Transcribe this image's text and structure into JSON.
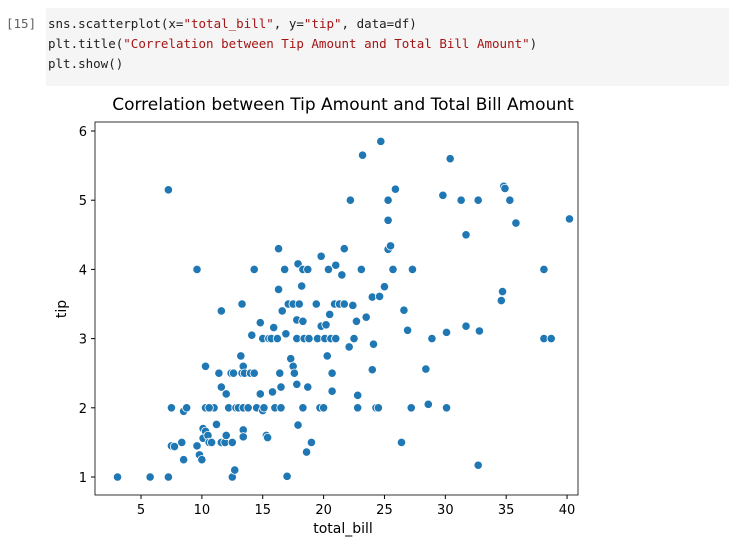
{
  "cell": {
    "prompt": "[15]",
    "code_lines": [
      [
        {
          "text": "sns.scatterplot(x=",
          "color": "#212121"
        },
        {
          "text": "\"total_bill\"",
          "color": "#a31515"
        },
        {
          "text": ", y=",
          "color": "#212121"
        },
        {
          "text": "\"tip\"",
          "color": "#a31515"
        },
        {
          "text": ", data=df)",
          "color": "#212121"
        }
      ],
      [
        {
          "text": "plt.title(",
          "color": "#212121"
        },
        {
          "text": "\"Correlation between Tip Amount and Total Bill Amount\"",
          "color": "#a31515"
        },
        {
          "text": ")",
          "color": "#212121"
        }
      ],
      [
        {
          "text": "plt.show()",
          "color": "#212121"
        }
      ]
    ]
  },
  "chart_data": {
    "type": "scatter",
    "title": "Correlation between Tip Amount and Total Bill Amount",
    "x_label": "total_bill",
    "y_label": "tip",
    "color": "#1f77b4",
    "xlim": [
      1.22,
      40.9
    ],
    "ylim": [
      0.74,
      6.13
    ],
    "xticks": [
      5,
      10,
      15,
      20,
      25,
      30,
      35,
      40
    ],
    "yticks": [
      1,
      2,
      3,
      4,
      5,
      6
    ],
    "x": [
      3.07,
      5.75,
      7.25,
      7.25,
      7.5,
      7.5,
      7.75,
      8.35,
      8.5,
      8.5,
      8.75,
      9.6,
      9.6,
      9.8,
      10.0,
      10.1,
      10.3,
      10.3,
      10.1,
      10.5,
      10.6,
      10.8,
      11.0,
      10.6,
      10.3,
      11.2,
      11.4,
      11.6,
      11.6,
      11.6,
      11.9,
      12.0,
      12.0,
      12.2,
      12.5,
      12.4,
      12.6,
      12.5,
      12.7,
      12.8,
      13.0,
      13.2,
      13.3,
      13.4,
      13.4,
      13.4,
      13.3,
      13.4,
      13.5,
      13.8,
      14.0,
      14.1,
      14.3,
      14.3,
      14.5,
      14.8,
      14.8,
      15.0,
      15.0,
      15.1,
      15.3,
      15.4,
      15.5,
      15.7,
      15.8,
      15.9,
      16.0,
      16.2,
      16.3,
      16.3,
      16.4,
      16.5,
      16.5,
      16.6,
      16.8,
      16.9,
      17.0,
      17.1,
      17.3,
      17.5,
      17.5,
      17.6,
      17.8,
      17.8,
      17.9,
      17.9,
      17.8,
      18.0,
      18.2,
      18.3,
      18.4,
      18.3,
      18.3,
      18.6,
      18.7,
      18.8,
      18.7,
      19.0,
      19.4,
      19.5,
      19.7,
      19.8,
      19.8,
      20.0,
      20.1,
      20.2,
      20.3,
      20.4,
      20.5,
      20.6,
      20.7,
      20.7,
      20.9,
      21.0,
      21.0,
      21.3,
      21.5,
      21.7,
      21.7,
      22.1,
      22.2,
      22.4,
      22.5,
      22.7,
      22.8,
      22.8,
      23.1,
      23.2,
      23.5,
      24.0,
      24.0,
      24.1,
      24.3,
      24.5,
      24.6,
      24.7,
      25.0,
      25.3,
      25.3,
      25.3,
      25.5,
      25.7,
      25.9,
      26.4,
      26.6,
      26.9,
      27.2,
      27.3,
      28.4,
      28.6,
      28.9,
      29.8,
      30.1,
      30.1,
      30.4,
      31.3,
      31.7,
      31.7,
      32.7,
      32.7,
      32.8,
      34.6,
      34.7,
      34.8,
      34.9,
      35.3,
      35.8,
      38.1,
      38.1,
      38.7,
      40.2
    ],
    "values": [
      1.0,
      1.0,
      1.0,
      5.15,
      2.0,
      1.45,
      1.44,
      1.5,
      1.25,
      1.95,
      2.0,
      1.45,
      4.0,
      1.32,
      1.25,
      1.7,
      1.66,
      2.0,
      1.56,
      1.6,
      1.5,
      1.5,
      2.0,
      2.0,
      2.6,
      1.76,
      2.5,
      1.5,
      2.3,
      3.4,
      1.5,
      1.6,
      2.2,
      2.0,
      1.5,
      2.5,
      2.5,
      1.0,
      1.1,
      2.0,
      2.0,
      2.75,
      2.5,
      2.0,
      1.68,
      1.58,
      3.5,
      2.6,
      2.5,
      2.0,
      2.5,
      3.05,
      2.5,
      4.0,
      2.0,
      3.23,
      2.2,
      1.96,
      3.0,
      2.0,
      1.6,
      1.57,
      3.0,
      3.0,
      2.23,
      3.16,
      2.0,
      3.0,
      3.71,
      4.3,
      2.5,
      2.0,
      2.3,
      3.4,
      4.0,
      3.07,
      1.01,
      3.5,
      2.71,
      3.5,
      2.6,
      2.5,
      3.27,
      2.34,
      4.08,
      1.75,
      3.0,
      3.5,
      3.76,
      4.0,
      3.0,
      2.0,
      3.25,
      1.36,
      4.0,
      3.0,
      2.3,
      1.5,
      3.5,
      3.0,
      2.0,
      3.18,
      4.19,
      2.0,
      3.0,
      3.2,
      2.75,
      4.0,
      3.35,
      3.0,
      2.5,
      2.24,
      3.5,
      4.06,
      3.0,
      3.5,
      3.92,
      4.3,
      3.5,
      2.88,
      5.0,
      3.48,
      3.0,
      3.25,
      2.0,
      2.18,
      4.0,
      5.65,
      3.31,
      2.55,
      3.6,
      2.92,
      2.0,
      2.0,
      3.61,
      5.85,
      3.75,
      5.0,
      4.29,
      4.71,
      4.34,
      4.0,
      5.16,
      1.5,
      3.41,
      3.12,
      2.0,
      4.0,
      2.56,
      2.05,
      3.0,
      5.07,
      2.0,
      3.09,
      5.6,
      5.0,
      4.5,
      3.18,
      5.0,
      1.17,
      3.11,
      3.55,
      3.68,
      5.2,
      5.17,
      5.0,
      4.67,
      4.0,
      3.0,
      3.0,
      4.73
    ]
  }
}
